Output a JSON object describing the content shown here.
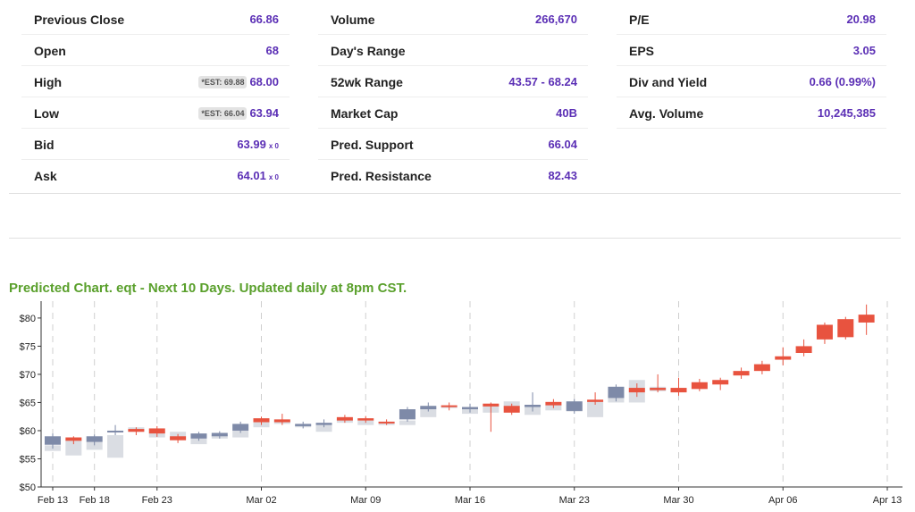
{
  "stats": {
    "col1": [
      {
        "label": "Previous Close",
        "value": "66.86"
      },
      {
        "label": "Open",
        "value": "68"
      },
      {
        "label": "High",
        "tag": "*EST: 69.88",
        "value": "68.00"
      },
      {
        "label": "Low",
        "tag": "*EST: 66.04",
        "value": "63.94"
      },
      {
        "label": "Bid",
        "value": "63.99",
        "suffix": "x 0"
      },
      {
        "label": "Ask",
        "value": "64.01",
        "suffix": "x 0"
      }
    ],
    "col2": [
      {
        "label": "Volume",
        "value": "266,670"
      },
      {
        "label": "Day's Range",
        "value": ""
      },
      {
        "label": "52wk Range",
        "value": "43.57 - 68.24"
      },
      {
        "label": "Market Cap",
        "value": "40B"
      },
      {
        "label": "Pred. Support",
        "value": "66.04"
      },
      {
        "label": "Pred. Resistance",
        "value": "82.43"
      }
    ],
    "col3": [
      {
        "label": "P/E",
        "value": "20.98"
      },
      {
        "label": "EPS",
        "value": "3.05"
      },
      {
        "label": "Div and Yield",
        "value": "0.66 (0.99%)"
      },
      {
        "label": "Avg. Volume",
        "value": "10,245,385"
      }
    ]
  },
  "chart_title": "Predicted Chart. eqt - Next 10 Days. Updated daily at 8pm CST.",
  "colors": {
    "label_value": "#5b2fb5",
    "title": "#5aa02c",
    "up": "#e8533f",
    "down": "#7e8aa8",
    "faint": "#d4d7de"
  },
  "chart_data": {
    "type": "candlestick",
    "ylim": [
      50,
      83
    ],
    "y_ticks": [
      "$50",
      "$55",
      "$60",
      "$65",
      "$70",
      "$75",
      "$80"
    ],
    "y_tick_values": [
      50,
      55,
      60,
      65,
      70,
      75,
      80
    ],
    "x_ticks": [
      {
        "label": "Feb 13",
        "i": 0
      },
      {
        "label": "Feb 18",
        "i": 2
      },
      {
        "label": "Feb 23",
        "i": 5
      },
      {
        "label": "Mar 02",
        "i": 10
      },
      {
        "label": "Mar 09",
        "i": 15
      },
      {
        "label": "Mar 16",
        "i": 20
      },
      {
        "label": "Mar 23",
        "i": 25
      },
      {
        "label": "Mar 30",
        "i": 30
      },
      {
        "label": "Apr 06",
        "i": 35
      },
      {
        "label": "Apr 13",
        "i": 40
      }
    ],
    "grid_x": [
      0,
      2,
      5,
      10,
      15,
      20,
      25,
      30,
      35,
      40
    ],
    "candles": [
      {
        "o": 57.5,
        "c": 59.0,
        "h": 59.5,
        "l": 56.8,
        "s": "down"
      },
      {
        "o": 58.2,
        "c": 58.8,
        "h": 59.0,
        "l": 57.6,
        "s": "up"
      },
      {
        "o": 58.0,
        "c": 59.0,
        "h": 59.3,
        "l": 57.4,
        "s": "down"
      },
      {
        "o": 59.8,
        "c": 60.0,
        "h": 61.0,
        "l": 59.2,
        "s": "down"
      },
      {
        "o": 59.8,
        "c": 60.3,
        "h": 60.6,
        "l": 59.2,
        "s": "up"
      },
      {
        "o": 59.5,
        "c": 60.4,
        "h": 60.8,
        "l": 58.9,
        "s": "up"
      },
      {
        "o": 58.3,
        "c": 59.0,
        "h": 59.4,
        "l": 57.8,
        "s": "up"
      },
      {
        "o": 58.6,
        "c": 59.5,
        "h": 59.8,
        "l": 58.2,
        "s": "down"
      },
      {
        "o": 59.0,
        "c": 59.6,
        "h": 59.9,
        "l": 58.6,
        "s": "down"
      },
      {
        "o": 60.0,
        "c": 61.2,
        "h": 61.6,
        "l": 59.6,
        "s": "down"
      },
      {
        "o": 61.5,
        "c": 62.2,
        "h": 62.5,
        "l": 61.0,
        "s": "up"
      },
      {
        "o": 61.5,
        "c": 62.0,
        "h": 63.0,
        "l": 61.0,
        "s": "up"
      },
      {
        "o": 60.8,
        "c": 61.2,
        "h": 61.6,
        "l": 60.4,
        "s": "down"
      },
      {
        "o": 61.0,
        "c": 61.4,
        "h": 62.0,
        "l": 60.6,
        "s": "down"
      },
      {
        "o": 61.8,
        "c": 62.4,
        "h": 62.8,
        "l": 61.4,
        "s": "up"
      },
      {
        "o": 61.8,
        "c": 62.2,
        "h": 62.6,
        "l": 61.4,
        "s": "up"
      },
      {
        "o": 61.3,
        "c": 61.6,
        "h": 62.0,
        "l": 61.0,
        "s": "up"
      },
      {
        "o": 62.0,
        "c": 63.8,
        "h": 64.2,
        "l": 61.6,
        "s": "down"
      },
      {
        "o": 63.8,
        "c": 64.4,
        "h": 65.0,
        "l": 63.4,
        "s": "down"
      },
      {
        "o": 64.2,
        "c": 64.5,
        "h": 65.0,
        "l": 63.6,
        "s": "up"
      },
      {
        "o": 63.8,
        "c": 64.2,
        "h": 64.8,
        "l": 63.2,
        "s": "down"
      },
      {
        "o": 64.3,
        "c": 64.8,
        "h": 65.0,
        "l": 59.8,
        "s": "up"
      },
      {
        "o": 63.2,
        "c": 64.4,
        "h": 64.8,
        "l": 62.8,
        "s": "up"
      },
      {
        "o": 64.2,
        "c": 64.6,
        "h": 66.8,
        "l": 63.4,
        "s": "down"
      },
      {
        "o": 64.5,
        "c": 65.1,
        "h": 65.6,
        "l": 64.0,
        "s": "up"
      },
      {
        "o": 63.5,
        "c": 65.2,
        "h": 65.6,
        "l": 63.0,
        "s": "down"
      },
      {
        "o": 65.1,
        "c": 65.5,
        "h": 66.8,
        "l": 64.6,
        "s": "up"
      },
      {
        "o": 65.8,
        "c": 67.8,
        "h": 68.2,
        "l": 65.2,
        "s": "down"
      },
      {
        "o": 66.8,
        "c": 67.6,
        "h": 68.4,
        "l": 66.0,
        "s": "up"
      },
      {
        "o": 67.2,
        "c": 67.6,
        "h": 70.0,
        "l": 66.8,
        "s": "up"
      },
      {
        "o": 66.8,
        "c": 67.6,
        "h": 69.4,
        "l": 66.2,
        "s": "up"
      },
      {
        "o": 67.4,
        "c": 68.6,
        "h": 69.2,
        "l": 67.0,
        "s": "up"
      },
      {
        "o": 68.2,
        "c": 69.0,
        "h": 69.4,
        "l": 67.2,
        "s": "up"
      },
      {
        "o": 69.8,
        "c": 70.6,
        "h": 71.2,
        "l": 69.2,
        "s": "up"
      },
      {
        "o": 70.6,
        "c": 71.8,
        "h": 72.4,
        "l": 70.0,
        "s": "up"
      },
      {
        "o": 72.6,
        "c": 73.2,
        "h": 74.8,
        "l": 71.6,
        "s": "up"
      },
      {
        "o": 73.8,
        "c": 75.0,
        "h": 76.2,
        "l": 73.2,
        "s": "up"
      },
      {
        "o": 76.2,
        "c": 78.8,
        "h": 79.2,
        "l": 75.4,
        "s": "up"
      },
      {
        "o": 76.6,
        "c": 79.8,
        "h": 80.2,
        "l": 76.2,
        "s": "up"
      },
      {
        "o": 79.2,
        "c": 80.6,
        "h": 82.4,
        "l": 77.0,
        "s": "up"
      }
    ],
    "faint_boxes": [
      {
        "i": 0,
        "lo": 56.4,
        "hi": 57.4
      },
      {
        "i": 1,
        "lo": 55.6,
        "hi": 58.4
      },
      {
        "i": 2,
        "lo": 56.6,
        "hi": 58.0
      },
      {
        "i": 3,
        "lo": 55.2,
        "hi": 59.2
      },
      {
        "i": 4,
        "lo": 59.8,
        "hi": 60.6
      },
      {
        "i": 5,
        "lo": 58.8,
        "hi": 59.8
      },
      {
        "i": 6,
        "lo": 58.4,
        "hi": 59.8
      },
      {
        "i": 7,
        "lo": 57.6,
        "hi": 58.6
      },
      {
        "i": 8,
        "lo": 58.6,
        "hi": 59.2
      },
      {
        "i": 9,
        "lo": 58.8,
        "hi": 60.0
      },
      {
        "i": 10,
        "lo": 60.6,
        "hi": 61.6
      },
      {
        "i": 11,
        "lo": 61.2,
        "hi": 61.8
      },
      {
        "i": 12,
        "lo": 60.6,
        "hi": 61.2
      },
      {
        "i": 13,
        "lo": 59.8,
        "hi": 61.0
      },
      {
        "i": 14,
        "lo": 61.4,
        "hi": 62.0
      },
      {
        "i": 15,
        "lo": 61.0,
        "hi": 61.8
      },
      {
        "i": 16,
        "lo": 61.0,
        "hi": 61.6
      },
      {
        "i": 17,
        "lo": 61.0,
        "hi": 61.8
      },
      {
        "i": 18,
        "lo": 62.4,
        "hi": 64.2
      },
      {
        "i": 19,
        "lo": 64.0,
        "hi": 64.4
      },
      {
        "i": 20,
        "lo": 63.0,
        "hi": 64.0
      },
      {
        "i": 21,
        "lo": 63.2,
        "hi": 64.4
      },
      {
        "i": 22,
        "lo": 64.0,
        "hi": 65.2
      },
      {
        "i": 23,
        "lo": 62.8,
        "hi": 64.4
      },
      {
        "i": 24,
        "lo": 63.6,
        "hi": 64.6
      },
      {
        "i": 25,
        "lo": 63.4,
        "hi": 64.6
      },
      {
        "i": 26,
        "lo": 62.4,
        "hi": 65.2
      },
      {
        "i": 27,
        "lo": 65.0,
        "hi": 66.4
      },
      {
        "i": 28,
        "lo": 65.0,
        "hi": 69.0
      },
      {
        "i": 29,
        "lo": 67.0,
        "hi": 67.8
      }
    ]
  }
}
